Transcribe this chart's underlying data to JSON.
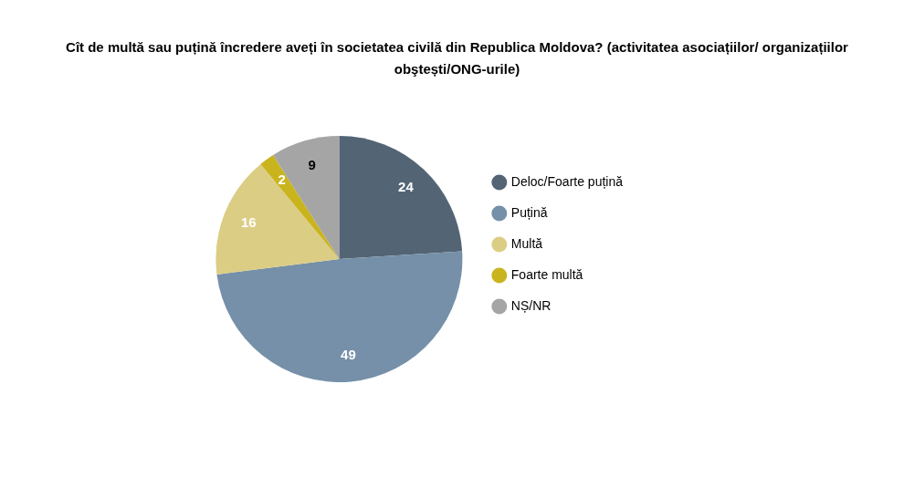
{
  "chart_data": {
    "type": "pie",
    "title": "Cît de multă sau puțină încredere aveți în societatea civilă din Republica Moldova? (activitatea asociațiilor/ organizațiilor obştești/ONG-urile)",
    "categories": [
      "Deloc/Foarte puțină",
      "Puțină",
      "Multă",
      "Foarte multă",
      "NȘ/NR"
    ],
    "values": [
      24,
      49,
      16,
      2,
      9
    ],
    "colors": [
      "#536475",
      "#7590a8",
      "#dccd85",
      "#c9b41e",
      "#a5a5a5"
    ],
    "data_labels": true,
    "legend": "right"
  }
}
